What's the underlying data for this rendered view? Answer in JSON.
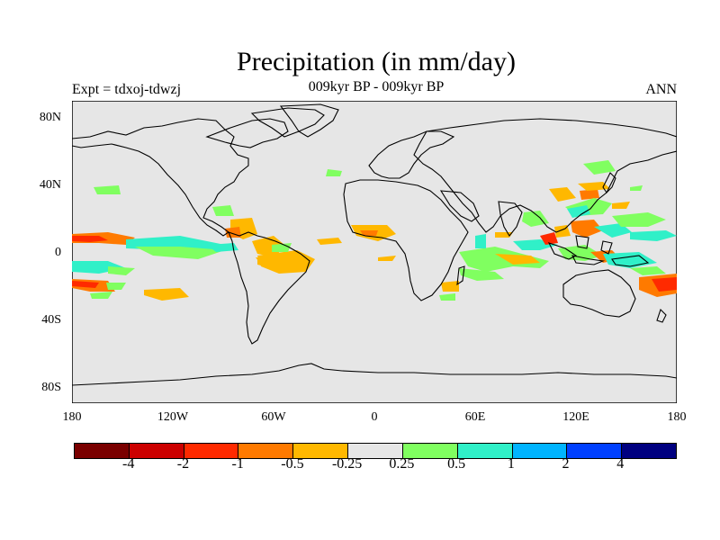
{
  "title": "Precipitation (in mm/day)",
  "experiment": "Expt = tdxoj-tdwzj",
  "subtitle": "009kyr BP - 009kyr BP",
  "season": "ANN",
  "lat_labels": [
    "80N",
    "40N",
    "0",
    "40S",
    "80S"
  ],
  "lon_labels": [
    "180",
    "120W",
    "60W",
    "0",
    "60E",
    "120E",
    "180"
  ],
  "colorbar": {
    "colors": [
      "#7a0000",
      "#cc0000",
      "#ff2a00",
      "#ff7a00",
      "#ffb800",
      "#e6e6e6",
      "#80ff60",
      "#30f0c8",
      "#00b4ff",
      "#0040ff",
      "#000080"
    ],
    "labels": [
      "-4",
      "-2",
      "-1",
      "-0.5",
      "-0.25",
      "0.25",
      "0.5",
      "1",
      "2",
      "4"
    ]
  },
  "map": {
    "ocean_color": "#e6e6e6",
    "anomaly_colors": {
      "orange": "#ffb800",
      "dark_orange": "#ff7a00",
      "red": "#ff2a00",
      "green": "#80ff60",
      "cyan": "#30f0c8"
    }
  }
}
